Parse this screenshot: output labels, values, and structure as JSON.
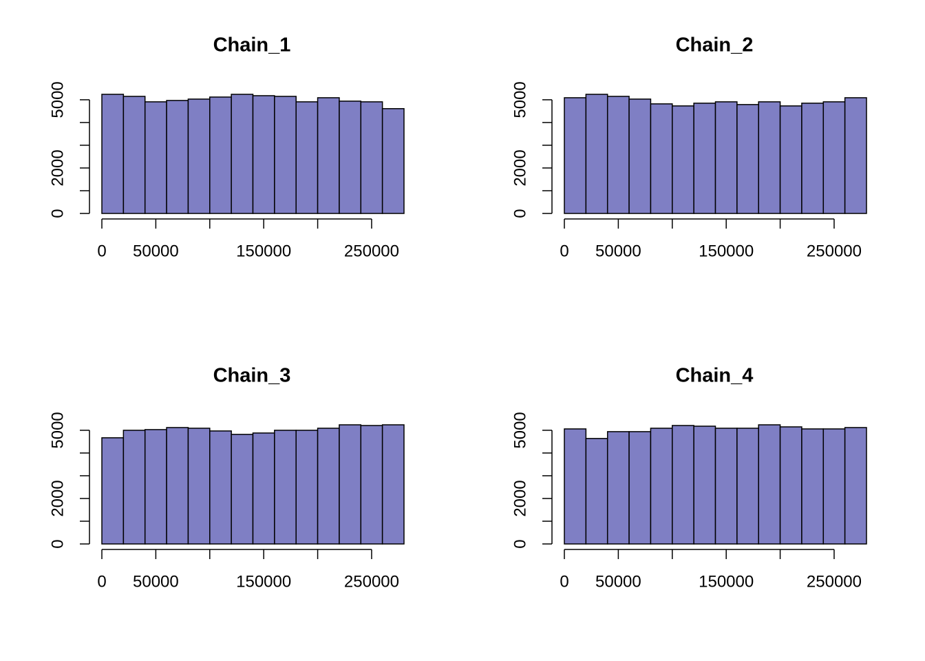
{
  "chart_data": [
    {
      "type": "histogram",
      "title": "Chain_1",
      "color": "#7f7fc4",
      "bins": [
        0,
        20000,
        40000,
        60000,
        80000,
        100000,
        120000,
        140000,
        160000,
        180000,
        200000,
        220000,
        240000,
        260000,
        280000
      ],
      "values": [
        5240,
        5150,
        4910,
        4970,
        5030,
        5120,
        5240,
        5180,
        5150,
        4910,
        5090,
        4940,
        4910,
        4610
      ],
      "xlim": [
        0,
        280000
      ],
      "ylim": [
        0,
        5300
      ],
      "xticks": [
        0,
        50000,
        {
          "value": 100000,
          "label": null
        },
        150000,
        {
          "value": 200000,
          "label": null
        },
        250000
      ],
      "yticks": [
        0,
        {
          "value": 1000,
          "label": null
        },
        2000,
        {
          "value": 3000,
          "label": null
        },
        {
          "value": 4000,
          "label": null
        },
        5000
      ]
    },
    {
      "type": "histogram",
      "title": "Chain_2",
      "color": "#7f7fc4",
      "bins": [
        0,
        20000,
        40000,
        60000,
        80000,
        100000,
        120000,
        140000,
        160000,
        180000,
        200000,
        220000,
        240000,
        260000,
        280000
      ],
      "values": [
        5090,
        5240,
        5150,
        5030,
        4820,
        4730,
        4850,
        4910,
        4790,
        4910,
        4730,
        4850,
        4910,
        5090
      ],
      "xlim": [
        0,
        280000
      ],
      "ylim": [
        0,
        5300
      ],
      "xticks": [
        0,
        50000,
        {
          "value": 100000,
          "label": null
        },
        150000,
        {
          "value": 200000,
          "label": null
        },
        250000
      ],
      "yticks": [
        0,
        {
          "value": 1000,
          "label": null
        },
        2000,
        {
          "value": 3000,
          "label": null
        },
        {
          "value": 4000,
          "label": null
        },
        5000
      ]
    },
    {
      "type": "histogram",
      "title": "Chain_3",
      "color": "#7f7fc4",
      "bins": [
        0,
        20000,
        40000,
        60000,
        80000,
        100000,
        120000,
        140000,
        160000,
        180000,
        200000,
        220000,
        240000,
        260000,
        280000
      ],
      "values": [
        4670,
        5000,
        5030,
        5120,
        5090,
        4970,
        4820,
        4880,
        5000,
        5000,
        5090,
        5240,
        5210,
        5240
      ],
      "xlim": [
        0,
        280000
      ],
      "ylim": [
        0,
        5300
      ],
      "xticks": [
        0,
        50000,
        {
          "value": 100000,
          "label": null
        },
        150000,
        {
          "value": 200000,
          "label": null
        },
        250000
      ],
      "yticks": [
        0,
        {
          "value": 1000,
          "label": null
        },
        2000,
        {
          "value": 3000,
          "label": null
        },
        {
          "value": 4000,
          "label": null
        },
        5000
      ]
    },
    {
      "type": "histogram",
      "title": "Chain_4",
      "color": "#7f7fc4",
      "bins": [
        0,
        20000,
        40000,
        60000,
        80000,
        100000,
        120000,
        140000,
        160000,
        180000,
        200000,
        220000,
        240000,
        260000,
        280000
      ],
      "values": [
        5060,
        4640,
        4940,
        4940,
        5090,
        5210,
        5180,
        5090,
        5090,
        5240,
        5150,
        5060,
        5060,
        5120
      ],
      "xlim": [
        0,
        280000
      ],
      "ylim": [
        0,
        5300
      ],
      "xticks": [
        0,
        50000,
        {
          "value": 100000,
          "label": null
        },
        150000,
        {
          "value": 200000,
          "label": null
        },
        250000
      ],
      "yticks": [
        0,
        {
          "value": 1000,
          "label": null
        },
        2000,
        {
          "value": 3000,
          "label": null
        },
        {
          "value": 4000,
          "label": null
        },
        5000
      ]
    }
  ]
}
